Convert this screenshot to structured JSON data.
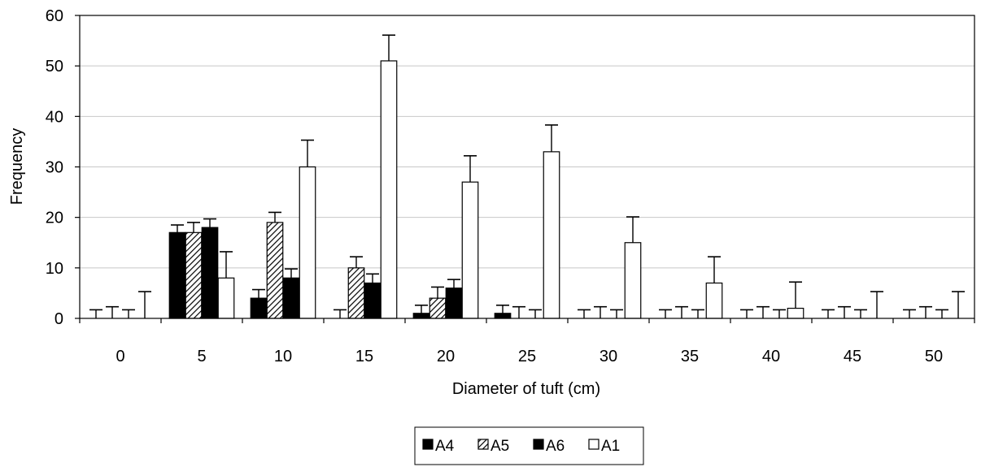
{
  "chart_data": {
    "type": "bar",
    "title": "",
    "xlabel": "Diameter of tuft (cm)",
    "ylabel": "Frequency",
    "ylim": [
      0,
      60
    ],
    "yticks": [
      "0",
      "10",
      "20",
      "30",
      "40",
      "50",
      "60"
    ],
    "categories": [
      "0",
      "5",
      "10",
      "15",
      "20",
      "25",
      "30",
      "35",
      "40",
      "45",
      "50"
    ],
    "grid": true,
    "legend_position": "bottom",
    "series": [
      {
        "name": "A4",
        "pattern": "solid-black",
        "values": [
          0,
          17,
          4,
          0,
          1,
          1,
          0,
          0,
          0,
          0,
          0
        ],
        "error_upper": [
          1.7,
          1.5,
          1.7,
          1.7,
          1.6,
          1.6,
          1.7,
          1.7,
          1.7,
          1.7,
          1.7
        ]
      },
      {
        "name": "A5",
        "pattern": "hatched",
        "values": [
          0,
          17,
          19,
          10,
          4,
          0,
          0,
          0,
          0,
          0,
          0
        ],
        "error_upper": [
          2.3,
          2.0,
          2.0,
          2.2,
          2.2,
          2.3,
          2.3,
          2.3,
          2.3,
          2.3,
          2.3
        ]
      },
      {
        "name": "A6",
        "pattern": "solid-black",
        "values": [
          0,
          18,
          8,
          7,
          6,
          0,
          0,
          0,
          0,
          0,
          0
        ],
        "error_upper": [
          1.7,
          1.7,
          1.8,
          1.8,
          1.7,
          1.7,
          1.7,
          1.7,
          1.7,
          1.7,
          1.7
        ]
      },
      {
        "name": "A1",
        "pattern": "white",
        "values": [
          0,
          8,
          30,
          51,
          27,
          33,
          15,
          7,
          2,
          0,
          0
        ],
        "error_upper": [
          5.3,
          5.2,
          5.3,
          5.1,
          5.2,
          5.3,
          5.1,
          5.2,
          5.2,
          5.3,
          5.3
        ]
      }
    ],
    "colors": {
      "bar_solid": "#000000",
      "bar_white": "#ffffff",
      "grid": "#c8c8c8",
      "axis": "#000000"
    }
  }
}
